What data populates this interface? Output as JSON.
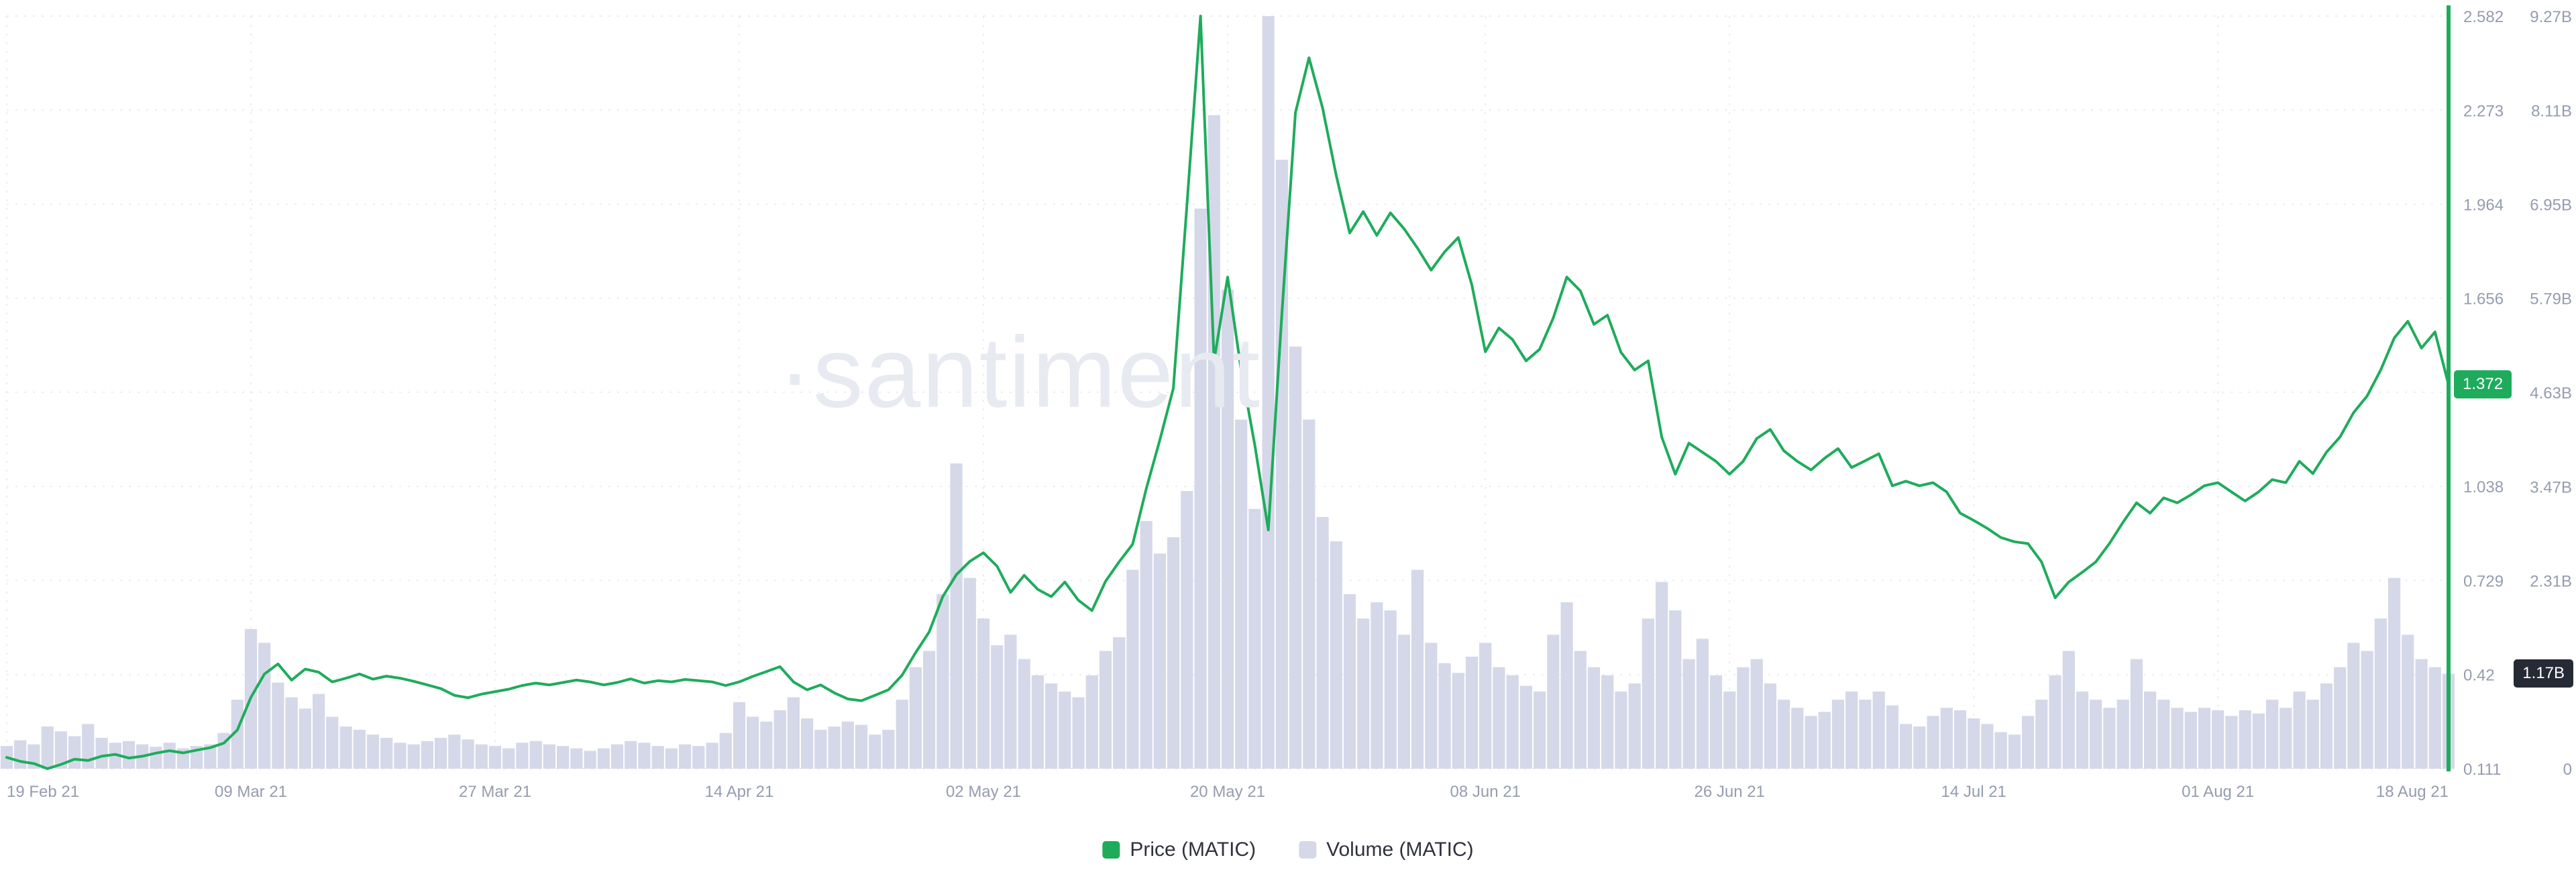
{
  "watermark": "·santiment",
  "legend": [
    {
      "label": "Price (MATIC)",
      "color": "#1eac5c",
      "marker": "square"
    },
    {
      "label": "Volume (MATIC)",
      "color": "#d4d8e8",
      "marker": "square"
    }
  ],
  "colors": {
    "price_line": "#1eac5c",
    "volume_bar": "#d4d8e8",
    "grid": "#e9ecf4",
    "axis_text": "#959caf",
    "watermark": "#e8eaf2",
    "price_badge_bg": "#1eac5c",
    "volume_badge_bg": "#262a34",
    "background": "#ffffff"
  },
  "chart_data": {
    "type": "line+bar",
    "title": "",
    "xlabel": "",
    "ylabel_left": "",
    "ylabel_right": "",
    "x_axis": {
      "start_label": "19 Feb 21",
      "end_label": "18 Aug 21",
      "total_days": 180,
      "ticks": [
        {
          "label": "19 Feb 21",
          "day": 0
        },
        {
          "label": "09 Mar 21",
          "day": 18
        },
        {
          "label": "27 Mar 21",
          "day": 36
        },
        {
          "label": "14 Apr 21",
          "day": 54
        },
        {
          "label": "02 May 21",
          "day": 72
        },
        {
          "label": "20 May 21",
          "day": 90
        },
        {
          "label": "08 Jun 21",
          "day": 109
        },
        {
          "label": "26 Jun 21",
          "day": 127
        },
        {
          "label": "14 Jul 21",
          "day": 145
        },
        {
          "label": "01 Aug 21",
          "day": 163
        },
        {
          "label": "18 Aug 21",
          "day": 180
        }
      ]
    },
    "price_axis": {
      "min": 0.111,
      "max": 2.582,
      "ticks": [
        {
          "value": 0.111,
          "label": "0.111"
        },
        {
          "value": 0.42,
          "label": "0.42"
        },
        {
          "value": 0.729,
          "label": "0.729"
        },
        {
          "value": 1.038,
          "label": "1.038"
        },
        {
          "value": 1.347,
          "label": ""
        },
        {
          "value": 1.656,
          "label": "1.656"
        },
        {
          "value": 1.964,
          "label": "1.964"
        },
        {
          "value": 2.273,
          "label": "2.273"
        },
        {
          "value": 2.582,
          "label": "2.582"
        }
      ]
    },
    "volume_axis": {
      "min": 0,
      "max": 9.27,
      "ticks": [
        {
          "value": 0,
          "label": "0"
        },
        {
          "value": 1.159,
          "label": ""
        },
        {
          "value": 2.318,
          "label": "2.31B"
        },
        {
          "value": 3.476,
          "label": "3.47B"
        },
        {
          "value": 4.635,
          "label": "4.63B"
        },
        {
          "value": 5.794,
          "label": "5.79B"
        },
        {
          "value": 6.953,
          "label": "6.95B"
        },
        {
          "value": 8.111,
          "label": "8.11B"
        },
        {
          "value": 9.27,
          "label": "9.27B"
        }
      ]
    },
    "current": {
      "price": 1.372,
      "price_label": "1.372",
      "volume": 1.17,
      "volume_label": "1.17B"
    },
    "grid": {
      "horizontal": true,
      "vertical": true,
      "style": "dashed"
    },
    "series": [
      {
        "name": "Price (MATIC)",
        "type": "line",
        "axis": "price",
        "color": "#1eac5c",
        "values": [
          0.148,
          0.135,
          0.128,
          0.111,
          0.125,
          0.142,
          0.138,
          0.152,
          0.158,
          0.146,
          0.152,
          0.162,
          0.17,
          0.163,
          0.172,
          0.18,
          0.195,
          0.238,
          0.345,
          0.422,
          0.455,
          0.402,
          0.438,
          0.428,
          0.396,
          0.408,
          0.422,
          0.405,
          0.415,
          0.408,
          0.398,
          0.386,
          0.374,
          0.352,
          0.344,
          0.356,
          0.364,
          0.372,
          0.384,
          0.392,
          0.386,
          0.394,
          0.402,
          0.396,
          0.386,
          0.394,
          0.406,
          0.392,
          0.4,
          0.396,
          0.404,
          0.4,
          0.396,
          0.384,
          0.396,
          0.414,
          0.43,
          0.446,
          0.396,
          0.37,
          0.386,
          0.36,
          0.34,
          0.334,
          0.352,
          0.37,
          0.418,
          0.492,
          0.56,
          0.676,
          0.748,
          0.792,
          0.82,
          0.776,
          0.69,
          0.746,
          0.7,
          0.676,
          0.724,
          0.664,
          0.63,
          0.726,
          0.79,
          0.848,
          1.03,
          1.19,
          1.36,
          1.96,
          2.582,
          1.45,
          1.725,
          1.42,
          1.175,
          0.895,
          1.605,
          2.265,
          2.445,
          2.28,
          2.06,
          1.87,
          1.94,
          1.862,
          1.936,
          1.884,
          1.82,
          1.748,
          1.808,
          1.855,
          1.7,
          1.48,
          1.558,
          1.52,
          1.45,
          1.488,
          1.59,
          1.725,
          1.68,
          1.57,
          1.6,
          1.478,
          1.42,
          1.45,
          1.2,
          1.078,
          1.18,
          1.15,
          1.12,
          1.078,
          1.12,
          1.195,
          1.225,
          1.155,
          1.12,
          1.092,
          1.13,
          1.162,
          1.1,
          1.122,
          1.145,
          1.04,
          1.055,
          1.04,
          1.05,
          1.02,
          0.95,
          0.926,
          0.9,
          0.87,
          0.856,
          0.85,
          0.79,
          0.672,
          0.724,
          0.756,
          0.79,
          0.85,
          0.92,
          0.984,
          0.95,
          1.0,
          0.984,
          1.01,
          1.04,
          1.05,
          1.02,
          0.99,
          1.02,
          1.06,
          1.05,
          1.12,
          1.08,
          1.15,
          1.2,
          1.28,
          1.335,
          1.42,
          1.525,
          1.58,
          1.492,
          1.545,
          1.372
        ]
      },
      {
        "name": "Volume (MATIC)",
        "type": "bar",
        "axis": "volume",
        "unit": "B",
        "color": "#d4d8e8",
        "values": [
          0.28,
          0.35,
          0.3,
          0.52,
          0.46,
          0.4,
          0.55,
          0.38,
          0.32,
          0.34,
          0.3,
          0.27,
          0.32,
          0.25,
          0.28,
          0.3,
          0.44,
          0.85,
          1.72,
          1.55,
          1.06,
          0.88,
          0.74,
          0.92,
          0.64,
          0.52,
          0.48,
          0.42,
          0.38,
          0.32,
          0.3,
          0.34,
          0.38,
          0.42,
          0.36,
          0.3,
          0.28,
          0.25,
          0.32,
          0.34,
          0.3,
          0.28,
          0.25,
          0.22,
          0.25,
          0.3,
          0.34,
          0.32,
          0.28,
          0.25,
          0.3,
          0.28,
          0.32,
          0.44,
          0.82,
          0.64,
          0.58,
          0.72,
          0.88,
          0.62,
          0.48,
          0.52,
          0.58,
          0.54,
          0.42,
          0.48,
          0.85,
          1.25,
          1.45,
          2.15,
          3.76,
          2.35,
          1.85,
          1.52,
          1.65,
          1.35,
          1.15,
          1.05,
          0.95,
          0.88,
          1.15,
          1.45,
          1.62,
          2.45,
          3.05,
          2.65,
          2.85,
          3.42,
          6.9,
          8.05,
          5.9,
          4.3,
          3.2,
          9.27,
          7.5,
          5.2,
          4.3,
          3.1,
          2.8,
          2.15,
          1.85,
          2.05,
          1.95,
          1.65,
          2.45,
          1.55,
          1.3,
          1.18,
          1.38,
          1.55,
          1.25,
          1.15,
          1.02,
          0.95,
          1.65,
          2.05,
          1.45,
          1.25,
          1.15,
          0.95,
          1.05,
          1.85,
          2.3,
          1.95,
          1.35,
          1.6,
          1.15,
          0.95,
          1.25,
          1.35,
          1.05,
          0.85,
          0.75,
          0.65,
          0.7,
          0.85,
          0.95,
          0.85,
          0.95,
          0.78,
          0.55,
          0.52,
          0.65,
          0.75,
          0.72,
          0.62,
          0.55,
          0.45,
          0.42,
          0.65,
          0.85,
          1.15,
          1.45,
          0.95,
          0.85,
          0.75,
          0.85,
          1.35,
          0.95,
          0.85,
          0.75,
          0.7,
          0.75,
          0.72,
          0.65,
          0.72,
          0.68,
          0.85,
          0.75,
          0.95,
          0.85,
          1.05,
          1.25,
          1.55,
          1.45,
          1.85,
          2.35,
          1.65,
          1.35,
          1.25,
          1.17
        ]
      }
    ]
  }
}
